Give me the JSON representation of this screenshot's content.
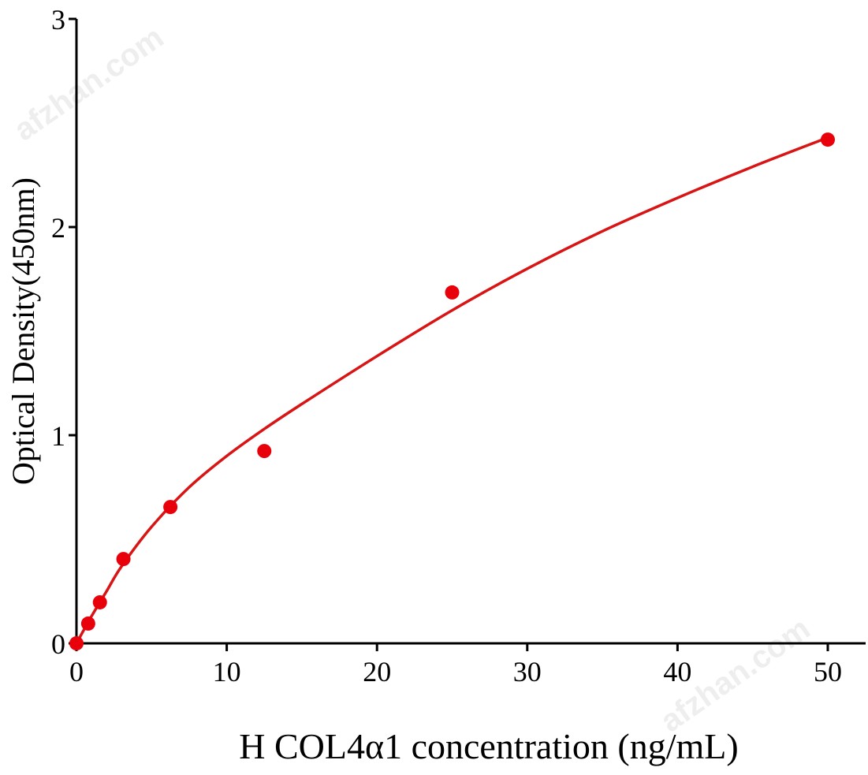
{
  "chart_data": {
    "type": "scatter",
    "title": "",
    "xlabel": "H COL4α1 concentration (ng/mL)",
    "ylabel": "Optical Density(450nm)",
    "xlim": [
      0,
      50
    ],
    "ylim": [
      0,
      3
    ],
    "xticks": [
      0,
      10,
      20,
      30,
      40,
      50
    ],
    "yticks": [
      0,
      1,
      2,
      3
    ],
    "grid": false,
    "series": [
      {
        "name": "Standard points",
        "color": "#e8000b",
        "x": [
          0,
          0.78,
          1.56,
          3.125,
          6.25,
          12.5,
          25,
          50
        ],
        "y": [
          0,
          0.095,
          0.197,
          0.405,
          0.655,
          0.924,
          1.686,
          2.42
        ]
      },
      {
        "name": "Fitted curve",
        "color": "#d81414",
        "x": [
          0,
          1,
          2,
          3,
          5,
          7.5,
          10,
          12.5,
          15,
          20,
          25,
          30,
          35,
          40,
          45,
          50
        ],
        "y": [
          0,
          0.13,
          0.25,
          0.37,
          0.56,
          0.75,
          0.9,
          1.03,
          1.15,
          1.38,
          1.6,
          1.8,
          1.98,
          2.14,
          2.29,
          2.43
        ]
      }
    ],
    "watermark": "afzhan.com"
  }
}
